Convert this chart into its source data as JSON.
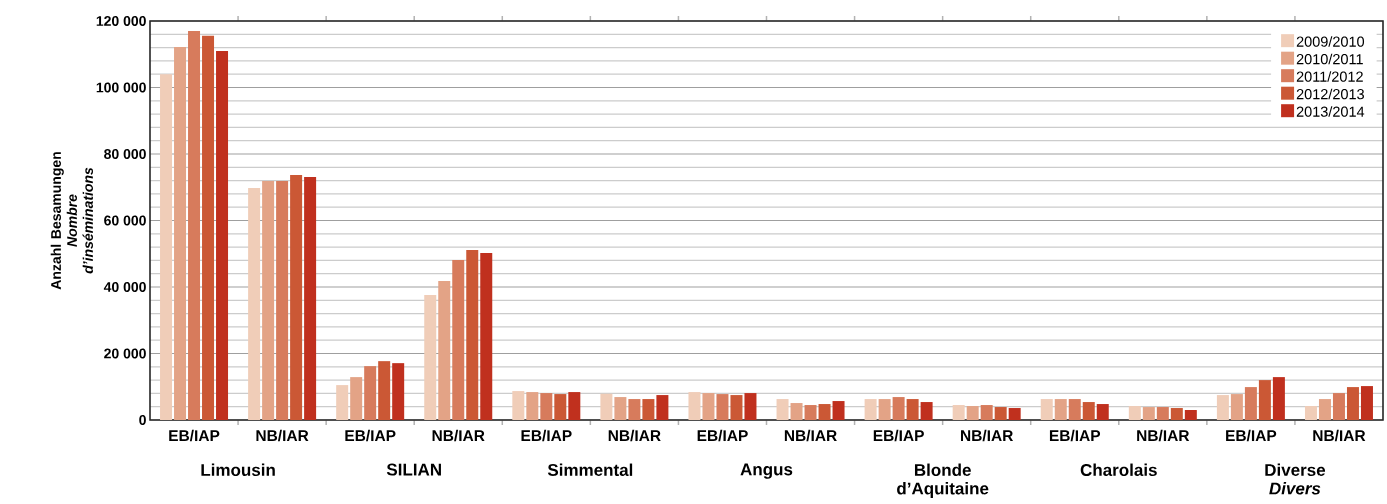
{
  "chart_data": {
    "type": "bar",
    "categories": [
      "EB/IAP",
      "NB/IAR",
      "EB/IAP",
      "NB/IAR",
      "EB/IAP",
      "NB/IAR",
      "EB/IAP",
      "NB/IAR",
      "EB/IAP",
      "NB/IAR",
      "EB/IAP",
      "NB/IAR",
      "EB/IAP",
      "NB/IAR"
    ],
    "ylabel": "Anzahl Besamungen *Nombre d’inséminations*",
    "annotations": [
      "Limousin",
      "SILIAN",
      "Simmental",
      "Angus",
      "Blonde d’Aquitaine",
      "Charolais",
      "Diverse *Divers*"
    ],
    "series": [
      {
        "name": "2009/2010",
        "color": "#f0cdb8",
        "values": [
          104000,
          69800,
          10500,
          37600,
          8700,
          7900,
          8400,
          6300,
          6300,
          4500,
          6300,
          4200,
          7500,
          4200
        ]
      },
      {
        "name": "2010/2011",
        "color": "#e3a386",
        "values": [
          112200,
          71900,
          12900,
          41800,
          8400,
          6900,
          8100,
          5100,
          6300,
          4200,
          6300,
          3900,
          7800,
          6300
        ]
      },
      {
        "name": "2011/2012",
        "color": "#d77b5c",
        "values": [
          117000,
          71900,
          16200,
          48100,
          8100,
          6300,
          7800,
          4500,
          6900,
          4500,
          6300,
          3900,
          9900,
          8100
        ]
      },
      {
        "name": "2012/2013",
        "color": "#cb5835",
        "values": [
          115600,
          73700,
          17700,
          51100,
          7800,
          6300,
          7500,
          4800,
          6300,
          3900,
          5400,
          3600,
          12000,
          9900
        ]
      },
      {
        "name": "2013/2014",
        "color": "#c0301e",
        "values": [
          111000,
          73100,
          17100,
          50200,
          8400,
          7500,
          8100,
          5700,
          5400,
          3600,
          4800,
          3000,
          12900,
          10200
        ]
      }
    ],
    "ylim": [
      0,
      120000
    ],
    "yticks": [
      {
        "value": 0,
        "label": "0"
      },
      {
        "value": 20000,
        "label": "20 000"
      },
      {
        "value": 40000,
        "label": "40 000"
      },
      {
        "value": 60000,
        "label": "60 000"
      },
      {
        "value": 80000,
        "label": "80 000"
      },
      {
        "value": 100000,
        "label": "100 000"
      },
      {
        "value": 120000,
        "label": "120 000"
      }
    ],
    "grid": "y",
    "legend": "top right"
  }
}
